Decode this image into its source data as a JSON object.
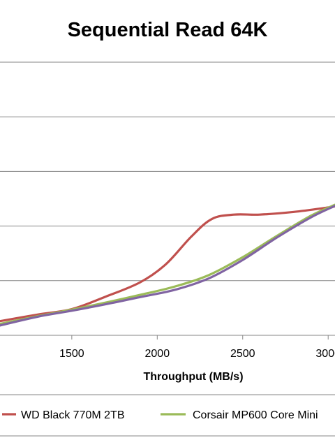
{
  "chart_data": {
    "type": "line",
    "title": "Sequential Read 64K",
    "xlabel": "Throughput  (MB/s)",
    "ylabel": "",
    "x_ticks": [
      1500,
      2000,
      2500,
      3000
    ],
    "x_tick_labels": [
      "1500",
      "2000",
      "2500",
      "3000"
    ],
    "xlim": [
      1080,
      3040
    ],
    "grid": true,
    "legend_position": "bottom",
    "series": [
      {
        "name": "WD Black 770M 2TB",
        "color": "#C0504D",
        "x": [
          1080,
          1300,
          1500,
          1700,
          1900,
          2050,
          2200,
          2320,
          2450,
          2600,
          2800,
          3000,
          3040
        ],
        "y": [
          0.26,
          0.38,
          0.48,
          0.71,
          0.97,
          1.3,
          1.81,
          2.13,
          2.21,
          2.21,
          2.26,
          2.34,
          2.36
        ]
      },
      {
        "name": "Corsair MP600 Core Mini",
        "color": "#9BBB59",
        "x": [
          1080,
          1300,
          1500,
          1700,
          1900,
          2100,
          2300,
          2500,
          2700,
          2900,
          3040
        ],
        "y": [
          0.21,
          0.35,
          0.47,
          0.6,
          0.74,
          0.89,
          1.1,
          1.43,
          1.82,
          2.19,
          2.39
        ]
      },
      {
        "name": "",
        "color": "#8064A2",
        "x": [
          1080,
          1300,
          1500,
          1700,
          1900,
          2100,
          2300,
          2500,
          2700,
          2900,
          3040
        ],
        "y": [
          0.18,
          0.34,
          0.45,
          0.57,
          0.7,
          0.83,
          1.04,
          1.38,
          1.79,
          2.16,
          2.37
        ]
      }
    ]
  }
}
